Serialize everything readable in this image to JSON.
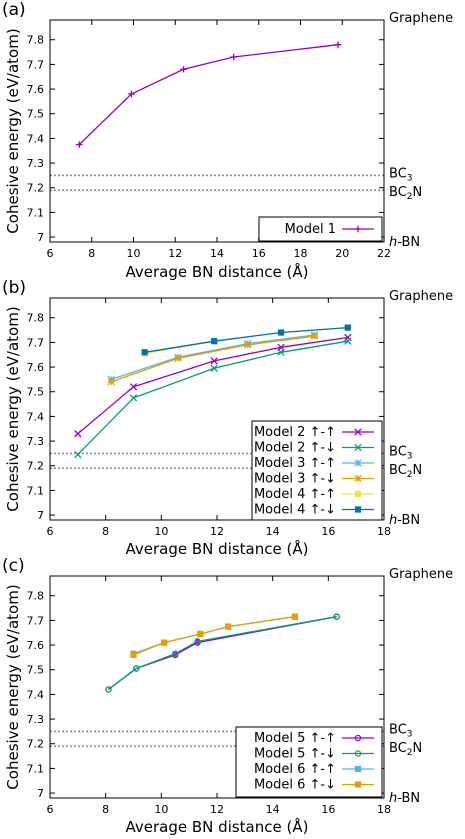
{
  "chart_data": [
    {
      "type": "line",
      "panel_label": "(a)",
      "xlabel": "Average BN distance (Å)",
      "ylabel": "Cohesive energy (eV/atom)",
      "xlim": [
        6,
        22
      ],
      "ylim": [
        6.98,
        7.88
      ],
      "xticks": [
        6,
        8,
        10,
        12,
        14,
        16,
        18,
        20,
        22
      ],
      "yticks": [
        7,
        7.1,
        7.2,
        7.3,
        7.4,
        7.5,
        7.6,
        7.7,
        7.8
      ],
      "ytick_labels": [
        "7",
        "7.1",
        "7.2",
        "7.3",
        "7.4",
        "7.5",
        "7.6",
        "7.7",
        "7.8"
      ],
      "reference_lines": [
        {
          "label_main": "Graphene",
          "label_sub": "",
          "label_suffix": "",
          "y": 7.88,
          "dotted": false
        },
        {
          "label_main": "BC",
          "label_sub": "3",
          "label_suffix": "",
          "y": 7.25,
          "dotted": true
        },
        {
          "label_main": "BC",
          "label_sub": "2",
          "label_suffix": "N",
          "y": 7.19,
          "dotted": true
        },
        {
          "label_main": "h",
          "label_sub": "",
          "label_suffix": "-BN",
          "y": 6.98,
          "dotted": false
        }
      ],
      "legend_position": "bottom-right",
      "series": [
        {
          "name": "Model 1",
          "color": "#9400d3",
          "marker": "plus",
          "x": [
            7.4,
            9.9,
            12.4,
            14.8,
            19.8
          ],
          "y": [
            7.375,
            7.58,
            7.68,
            7.73,
            7.78
          ]
        }
      ]
    },
    {
      "type": "line",
      "panel_label": "(b)",
      "xlabel": "Average BN distance (Å)",
      "ylabel": "Cohesive energy (eV/atom)",
      "xlim": [
        6,
        18
      ],
      "ylim": [
        6.98,
        7.88
      ],
      "xticks": [
        6,
        8,
        10,
        12,
        14,
        16,
        18
      ],
      "yticks": [
        7,
        7.1,
        7.2,
        7.3,
        7.4,
        7.5,
        7.6,
        7.7,
        7.8
      ],
      "ytick_labels": [
        "7",
        "7.1",
        "7.2",
        "7.3",
        "7.4",
        "7.5",
        "7.6",
        "7.7",
        "7.8"
      ],
      "reference_lines": [
        {
          "label_main": "Graphene",
          "label_sub": "",
          "label_suffix": "",
          "y": 7.88,
          "dotted": false
        },
        {
          "label_main": "BC",
          "label_sub": "3",
          "label_suffix": "",
          "y": 7.25,
          "dotted": true
        },
        {
          "label_main": "BC",
          "label_sub": "2",
          "label_suffix": "N",
          "y": 7.19,
          "dotted": true
        },
        {
          "label_main": "h",
          "label_sub": "",
          "label_suffix": "-BN",
          "y": 6.98,
          "dotted": false
        }
      ],
      "legend_position": "bottom-right",
      "series": [
        {
          "name": "Model 2 ↑-↑",
          "color": "#9400d3",
          "marker": "x",
          "x": [
            7.0,
            9.0,
            11.9,
            14.3,
            16.7
          ],
          "y": [
            7.33,
            7.52,
            7.625,
            7.68,
            7.72
          ]
        },
        {
          "name": "Model 2 ↑-↓",
          "color": "#009e73",
          "marker": "x",
          "x": [
            7.0,
            9.0,
            11.9,
            14.3,
            16.7
          ],
          "y": [
            7.245,
            7.475,
            7.595,
            7.66,
            7.705
          ]
        },
        {
          "name": "Model 3 ↑-↑",
          "color": "#56b4e9",
          "marker": "star",
          "x": [
            8.2,
            10.6,
            13.1,
            15.5
          ],
          "y": [
            7.55,
            7.64,
            7.695,
            7.73
          ]
        },
        {
          "name": "Model 3 ↑-↓",
          "color": "#e69f00",
          "marker": "star",
          "x": [
            8.2,
            10.6,
            13.1,
            15.5
          ],
          "y": [
            7.54,
            7.635,
            7.69,
            7.725
          ]
        },
        {
          "name": "Model 4 ↑-↑",
          "color": "#f0e442",
          "marker": "square",
          "x": [
            9.4,
            11.9,
            14.3,
            16.7
          ],
          "y": [
            7.655,
            7.705,
            7.74,
            7.76
          ]
        },
        {
          "name": "Model 4 ↑-↓",
          "color": "#0072b2",
          "marker": "square",
          "x": [
            9.4,
            11.9,
            14.3,
            16.7
          ],
          "y": [
            7.66,
            7.705,
            7.74,
            7.76
          ]
        }
      ]
    },
    {
      "type": "line",
      "panel_label": "(c)",
      "xlabel": "Average BN distance (Å)",
      "ylabel": "Cohesive energy (eV/atom)",
      "xlim": [
        6,
        18
      ],
      "ylim": [
        6.98,
        7.88
      ],
      "xticks": [
        6,
        8,
        10,
        12,
        14,
        16,
        18
      ],
      "yticks": [
        7,
        7.1,
        7.2,
        7.3,
        7.4,
        7.5,
        7.6,
        7.7,
        7.8
      ],
      "ytick_labels": [
        "7",
        "7.1",
        "7.2",
        "7.3",
        "7.4",
        "7.5",
        "7.6",
        "7.7",
        "7.8"
      ],
      "reference_lines": [
        {
          "label_main": "Graphene",
          "label_sub": "",
          "label_suffix": "",
          "y": 7.88,
          "dotted": false
        },
        {
          "label_main": "BC",
          "label_sub": "3",
          "label_suffix": "",
          "y": 7.25,
          "dotted": true
        },
        {
          "label_main": "BC",
          "label_sub": "2",
          "label_suffix": "N",
          "y": 7.19,
          "dotted": true
        },
        {
          "label_main": "h",
          "label_sub": "",
          "label_suffix": "-BN",
          "y": 6.98,
          "dotted": false
        }
      ],
      "legend_position": "bottom-right",
      "series": [
        {
          "name": "Model 5 ↑-↑",
          "color": "#9400d3",
          "marker": "circle",
          "x": [
            8.1,
            9.1,
            10.5,
            11.3,
            16.3
          ],
          "y": [
            7.42,
            7.505,
            7.56,
            7.61,
            7.715
          ]
        },
        {
          "name": "Model 5 ↑-↓",
          "color": "#009e73",
          "marker": "circle",
          "x": [
            8.1,
            9.1,
            10.5,
            11.3,
            16.3
          ],
          "y": [
            7.42,
            7.505,
            7.565,
            7.615,
            7.715
          ]
        },
        {
          "name": "Model 6 ↑-↑",
          "color": "#56b4e9",
          "marker": "square",
          "x": [
            9.0,
            10.1,
            11.4,
            12.4,
            14.8
          ],
          "y": [
            7.565,
            7.61,
            7.645,
            7.675,
            7.715
          ]
        },
        {
          "name": "Model 6 ↑-↓",
          "color": "#e69f00",
          "marker": "square",
          "x": [
            9.0,
            10.1,
            11.4,
            12.4,
            14.8
          ],
          "y": [
            7.56,
            7.61,
            7.645,
            7.675,
            7.715
          ]
        }
      ]
    }
  ]
}
